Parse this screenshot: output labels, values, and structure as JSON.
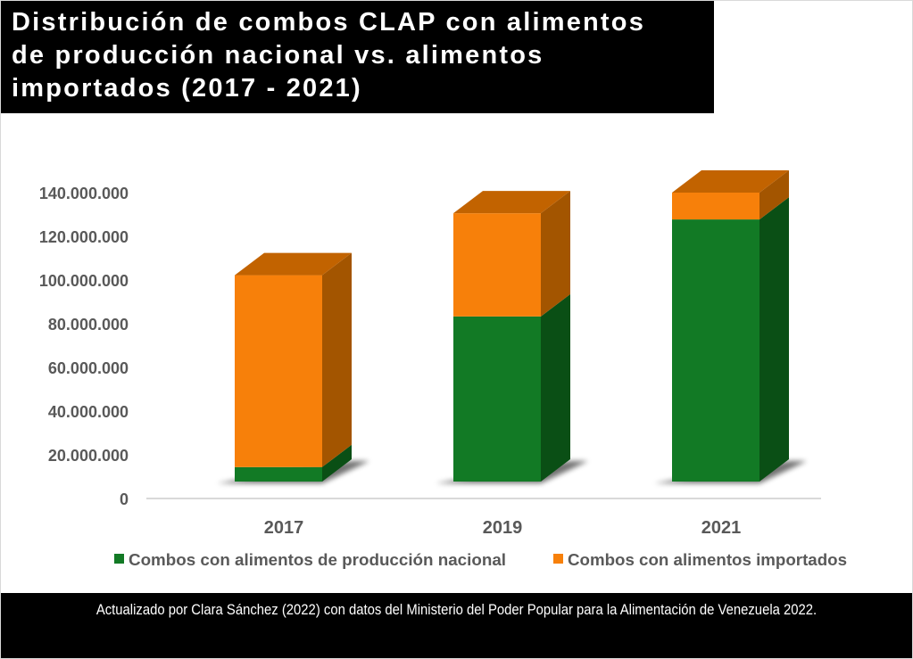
{
  "title_lines": [
    "Distribución de combos CLAP con alimentos",
    "de producción nacional vs. alimentos",
    "importados (2017 - 2021)"
  ],
  "footer": "Actualizado por Clara Sánchez (2022) con datos del Ministerio del Poder Popular para la Alimentación de Venezuela 2022.",
  "colors": {
    "national": "#127a25",
    "national_side": "#0a4f15",
    "imported": "#f7800a",
    "imported_side": "#a35500",
    "imported_top": "#c26300"
  },
  "chart_data": {
    "type": "bar",
    "stacked": true,
    "style": "3d-column",
    "title": "Distribución de combos CLAP con alimentos de producción nacional vs. alimentos importados (2017 - 2021)",
    "categories": [
      "2017",
      "2019",
      "2021"
    ],
    "series": [
      {
        "name": "Combos con alimentos de producción nacional",
        "values": [
          7000000,
          80000000,
          127000000
        ]
      },
      {
        "name": "Combos con alimentos importados",
        "values": [
          93000000,
          50000000,
          13000000
        ]
      }
    ],
    "xlabel": "",
    "ylabel": "",
    "ylim": [
      0,
      140000000
    ],
    "yticks": [
      0,
      20000000,
      40000000,
      60000000,
      80000000,
      100000000,
      120000000,
      140000000
    ],
    "ytick_labels": [
      "0",
      "20.000.000",
      "40.000.000",
      "60.000.000",
      "80.000.000",
      "100.000.000",
      "120.000.000",
      "140.000.000"
    ],
    "grid": false,
    "legend": "bottom"
  }
}
